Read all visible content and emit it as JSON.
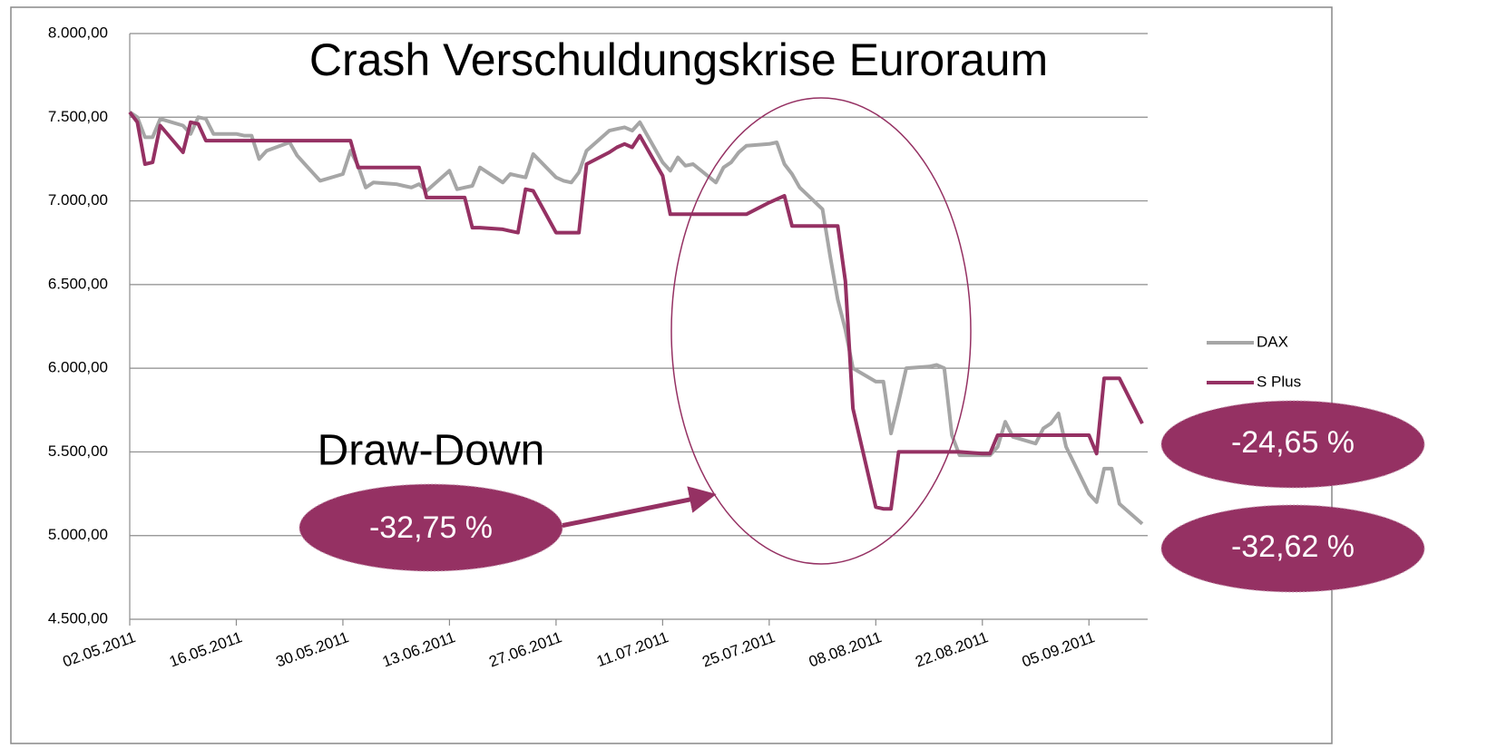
{
  "chart_data": {
    "type": "line",
    "title": "Crash Verschuldungskrise Euroraum",
    "annotations": [
      "Draw-Down",
      "-32,75 %",
      "-24,65 %",
      "-32,62 %"
    ],
    "x": [
      "02.05.2011",
      "03.05.2011",
      "04.05.2011",
      "05.05.2011",
      "06.05.2011",
      "09.05.2011",
      "10.05.2011",
      "11.05.2011",
      "12.05.2011",
      "13.05.2011",
      "16.05.2011",
      "17.05.2011",
      "18.05.2011",
      "19.05.2011",
      "20.05.2011",
      "23.05.2011",
      "24.05.2011",
      "25.05.2011",
      "26.05.2011",
      "27.05.2011",
      "30.05.2011",
      "31.05.2011",
      "01.06.2011",
      "02.06.2011",
      "03.06.2011",
      "06.06.2011",
      "07.06.2011",
      "08.06.2011",
      "09.06.2011",
      "10.06.2011",
      "13.06.2011",
      "14.06.2011",
      "15.06.2011",
      "16.06.2011",
      "17.06.2011",
      "20.06.2011",
      "21.06.2011",
      "22.06.2011",
      "23.06.2011",
      "24.06.2011",
      "27.06.2011",
      "28.06.2011",
      "29.06.2011",
      "30.06.2011",
      "01.07.2011",
      "04.07.2011",
      "05.07.2011",
      "06.07.2011",
      "07.07.2011",
      "08.07.2011",
      "11.07.2011",
      "12.07.2011",
      "13.07.2011",
      "14.07.2011",
      "15.07.2011",
      "18.07.2011",
      "19.07.2011",
      "20.07.2011",
      "21.07.2011",
      "22.07.2011",
      "25.07.2011",
      "26.07.2011",
      "27.07.2011",
      "28.07.2011",
      "29.07.2011",
      "01.08.2011",
      "02.08.2011",
      "03.08.2011",
      "04.08.2011",
      "05.08.2011",
      "08.08.2011",
      "09.08.2011",
      "10.08.2011",
      "11.08.2011",
      "12.08.2011",
      "15.08.2011",
      "16.08.2011",
      "17.08.2011",
      "18.08.2011",
      "19.08.2011",
      "22.08.2011",
      "23.08.2011",
      "24.08.2011",
      "25.08.2011",
      "26.08.2011",
      "29.08.2011",
      "30.08.2011",
      "31.08.2011",
      "01.09.2011",
      "02.09.2011",
      "05.09.2011",
      "06.09.2011",
      "07.09.2011",
      "08.09.2011",
      "09.09.2011",
      "12.09.2011"
    ],
    "series": [
      {
        "name": "DAX",
        "color": "#a6a6a6",
        "values": [
          7530,
          7500,
          7380,
          7380,
          7490,
          7450,
          7400,
          7500,
          7490,
          7400,
          7400,
          7390,
          7390,
          7250,
          7300,
          7350,
          7270,
          7220,
          7170,
          7120,
          7160,
          7300,
          7210,
          7080,
          7110,
          7100,
          7090,
          7080,
          7100,
          7060,
          7180,
          7070,
          7080,
          7090,
          7200,
          7110,
          7160,
          7150,
          7140,
          7280,
          7140,
          7120,
          7110,
          7170,
          7300,
          7420,
          7430,
          7440,
          7420,
          7470,
          7230,
          7180,
          7260,
          7210,
          7220,
          7110,
          7200,
          7230,
          7290,
          7330,
          7340,
          7350,
          7220,
          7160,
          7080,
          6950,
          6670,
          6410,
          6230,
          6000,
          5920,
          5920,
          5610,
          5800,
          6000,
          6010,
          6020,
          6000,
          5600,
          5480,
          5480,
          5480,
          5530,
          5680,
          5590,
          5550,
          5640,
          5670,
          5730,
          5530,
          5250,
          5200,
          5400,
          5400,
          5190,
          5070
        ]
      },
      {
        "name": "S Plus",
        "color": "#953163",
        "values": [
          7530,
          7470,
          7220,
          7230,
          7450,
          7290,
          7470,
          7460,
          7360,
          7360,
          7360,
          7360,
          7360,
          7360,
          7360,
          7360,
          7360,
          7360,
          7360,
          7360,
          7360,
          7360,
          7200,
          7200,
          7200,
          7200,
          7200,
          7200,
          7200,
          7020,
          7020,
          7020,
          7020,
          6840,
          6840,
          6830,
          6820,
          6810,
          7070,
          7060,
          6810,
          6810,
          6810,
          6810,
          7220,
          7290,
          7320,
          7340,
          7320,
          7390,
          7150,
          6920,
          6920,
          6920,
          6920,
          6920,
          6920,
          6920,
          6920,
          6920,
          6990,
          7010,
          7030,
          6850,
          6850,
          6850,
          6850,
          6850,
          6520,
          5760,
          5170,
          5160,
          5160,
          5500,
          5500,
          5500,
          5500,
          5500,
          5500,
          5500,
          5490,
          5490,
          5600,
          5600,
          5600,
          5600,
          5600,
          5600,
          5600,
          5600,
          5600,
          5490,
          5940,
          5940,
          5940,
          5670
        ]
      }
    ],
    "xlim": [
      "02.05.2011",
      "12.09.2011"
    ],
    "xticks": [
      "02.05.2011",
      "16.05.2011",
      "30.05.2011",
      "13.06.2011",
      "27.06.2011",
      "11.07.2011",
      "25.07.2011",
      "08.08.2011",
      "22.08.2011",
      "05.09.2011"
    ],
    "ylim": [
      4500,
      8000
    ],
    "yticks": [
      {
        "value": 4500,
        "label": "4.500,00"
      },
      {
        "value": 5000,
        "label": "5.000,00"
      },
      {
        "value": 5500,
        "label": "5.500,00"
      },
      {
        "value": 6000,
        "label": "6.000,00"
      },
      {
        "value": 6500,
        "label": "6.500,00"
      },
      {
        "value": 7000,
        "label": "7.000,00"
      },
      {
        "value": 7500,
        "label": "7.500,00"
      },
      {
        "value": 8000,
        "label": "8.000,00"
      }
    ],
    "grid": true,
    "legend": "right"
  }
}
